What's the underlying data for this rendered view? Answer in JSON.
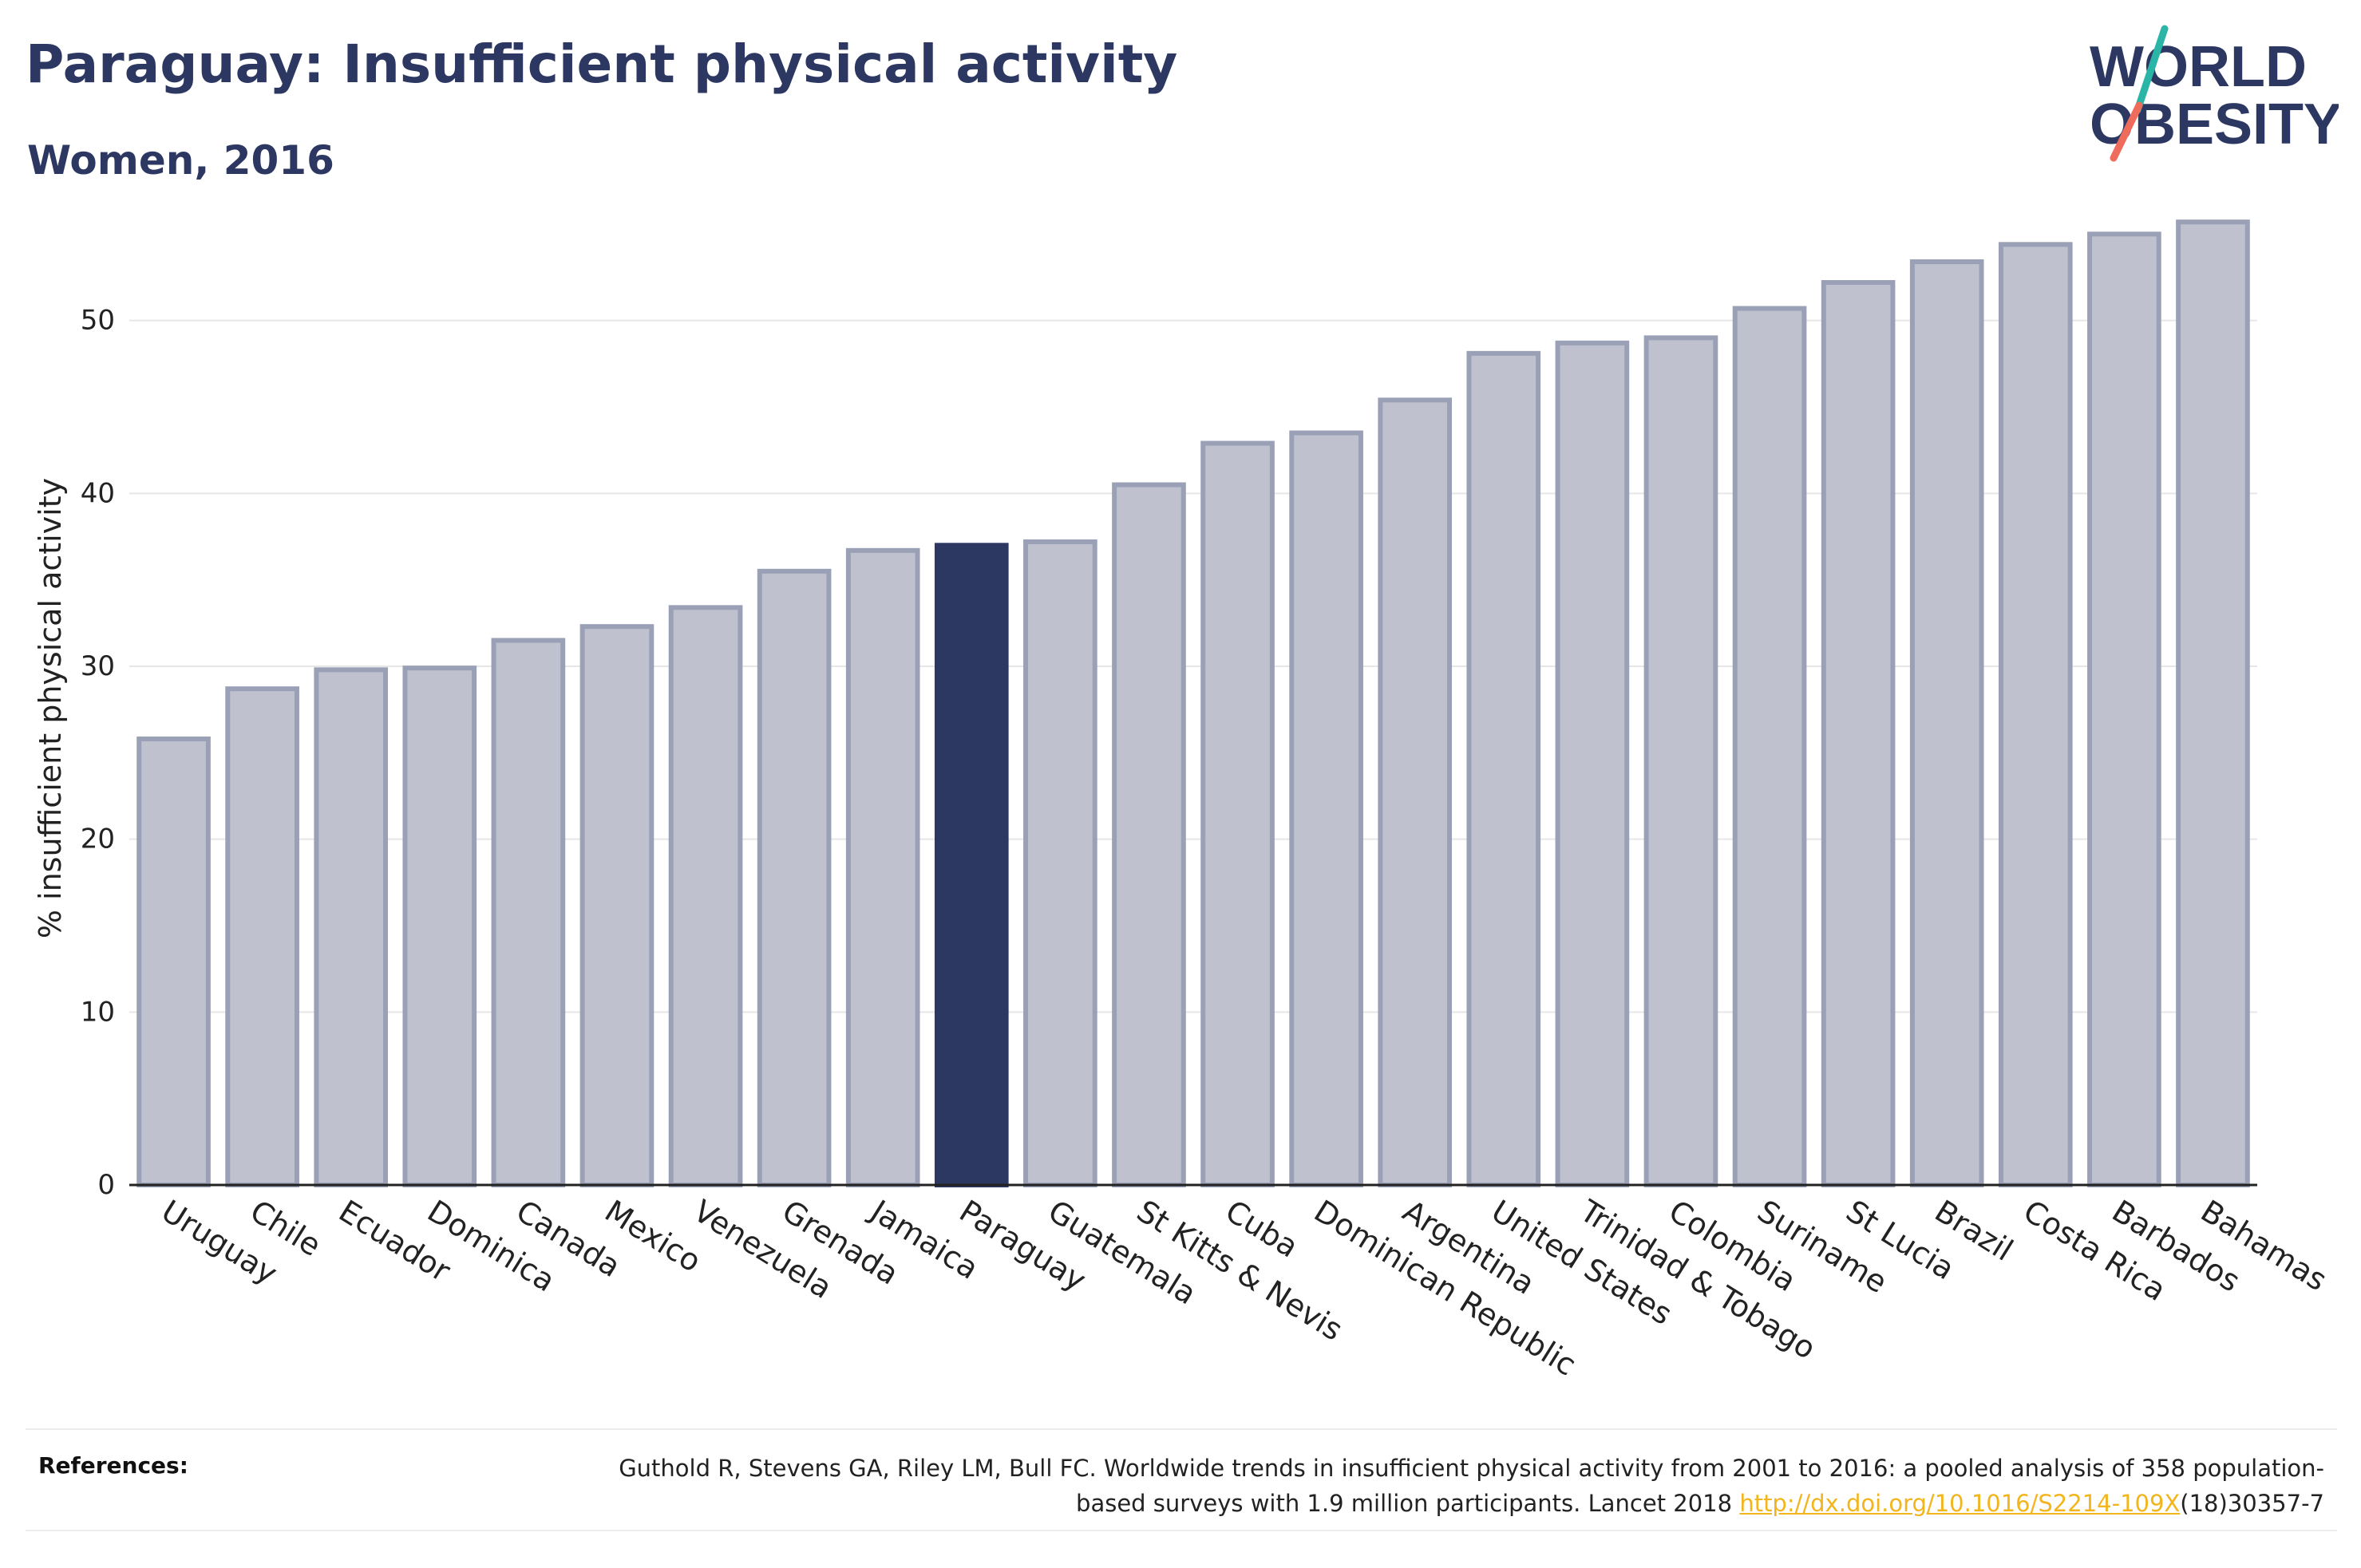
{
  "header": {
    "title": "Paraguay: Insufficient physical activity",
    "subtitle": "Women, 2016"
  },
  "logo": {
    "line1": "WORLD",
    "line2": "OBESITY",
    "colors": {
      "text": "#2d3862",
      "slash_top": "#2ab5a7",
      "slash_bottom": "#ef6b5c"
    }
  },
  "chart_data": {
    "type": "bar",
    "title": "Paraguay: Insufficient physical activity",
    "subtitle": "Women, 2016",
    "xlabel": "",
    "ylabel": "% insufficient physical activity",
    "ylim": [
      0,
      57
    ],
    "yticks": [
      0,
      10,
      20,
      30,
      40,
      50
    ],
    "grid": true,
    "highlight": "Paraguay",
    "colors": {
      "bar": "#bfc2ce",
      "bar_border": "#9aa0b6",
      "highlight": "#2d3862",
      "axis": "#222222",
      "grid": "#e6e6e6"
    },
    "categories": [
      "Uruguay",
      "Chile",
      "Ecuador",
      "Dominica",
      "Canada",
      "Mexico",
      "Venezuela",
      "Grenada",
      "Jamaica",
      "Paraguay",
      "Guatemala",
      "St Kitts & Nevis",
      "Cuba",
      "Dominican Republic",
      "Argentina",
      "United States",
      "Trinidad & Tobago",
      "Colombia",
      "Suriname",
      "St Lucia",
      "Brazil",
      "Costa Rica",
      "Barbados",
      "Bahamas"
    ],
    "values": [
      25.8,
      28.7,
      29.8,
      29.9,
      31.5,
      32.3,
      33.4,
      35.5,
      36.7,
      37.0,
      37.2,
      40.5,
      42.9,
      43.5,
      45.4,
      48.1,
      48.7,
      49.0,
      50.7,
      52.2,
      53.4,
      54.4,
      55.0,
      55.7
    ]
  },
  "references": {
    "label": "References:",
    "text_before_link": "Guthold R, Stevens GA, Riley LM, Bull FC. Worldwide trends in insufficient physical activity from 2001 to 2016: a pooled analysis of 358 population-based surveys with 1.9 million participants. Lancet 2018 ",
    "link_text": "http://dx.doi.org/10.1016/S2214-109X",
    "text_after_link": "(18)30357-7"
  }
}
